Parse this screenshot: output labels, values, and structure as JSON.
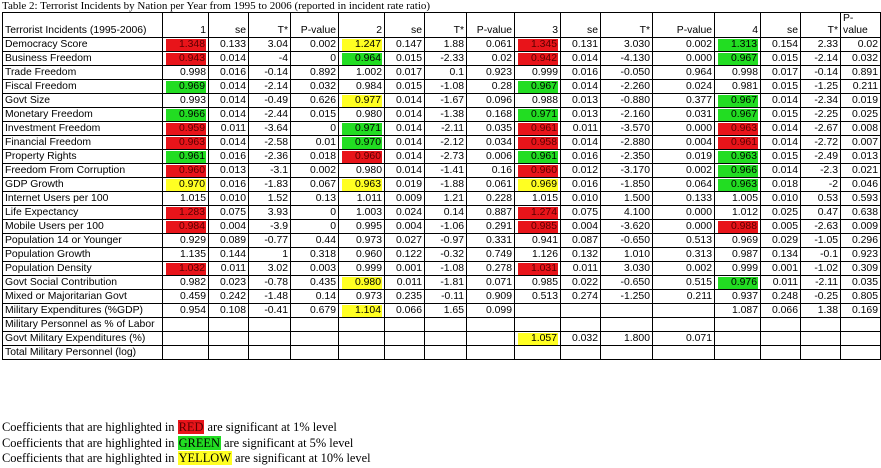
{
  "caption": "Table 2: Terrorist Incidents by Nation per Year from 1995 to 2006 (reported in incident rate ratio)",
  "header": [
    "Terrorist Incidents (1995-2006)",
    "1",
    "se",
    "T*",
    "P-value",
    "2",
    "se",
    "T*",
    "P-value",
    "3",
    "se",
    "T*",
    "P-value",
    "4",
    "se",
    "T*",
    "P-value"
  ],
  "rows": [
    {
      "label": "Democracy Score",
      "cells": [
        "1.348",
        "0.133",
        "3.04",
        "0.002",
        "1.247",
        "0.147",
        "1.88",
        "0.061",
        "1.345",
        "0.131",
        "3.030",
        "0.002",
        "1.313",
        "0.154",
        "2.33",
        "0.02"
      ],
      "hl": {
        "0": "r",
        "4": "y",
        "8": "r",
        "12": "g"
      }
    },
    {
      "label": "Business Freedom",
      "cells": [
        "0.943",
        "0.014",
        "-4",
        "0",
        "0.964",
        "0.015",
        "-2.33",
        "0.02",
        "0.942",
        "0.014",
        "-4.130",
        "0.000",
        "0.967",
        "0.015",
        "-2.14",
        "0.032"
      ],
      "hl": {
        "0": "r",
        "4": "g",
        "8": "r",
        "12": "g"
      }
    },
    {
      "label": "Trade Freedom",
      "cells": [
        "0.998",
        "0.016",
        "-0.14",
        "0.892",
        "1.002",
        "0.017",
        "0.1",
        "0.923",
        "0.999",
        "0.016",
        "-0.050",
        "0.964",
        "0.998",
        "0.017",
        "-0.14",
        "0.891"
      ],
      "hl": {}
    },
    {
      "label": "Fiscal Freedom",
      "cells": [
        "0.969",
        "0.014",
        "-2.14",
        "0.032",
        "0.984",
        "0.015",
        "-1.08",
        "0.28",
        "0.967",
        "0.014",
        "-2.260",
        "0.024",
        "0.981",
        "0.015",
        "-1.25",
        "0.211"
      ],
      "hl": {
        "0": "g",
        "8": "g"
      }
    },
    {
      "label": "Govt Size",
      "cells": [
        "0.993",
        "0.014",
        "-0.49",
        "0.626",
        "0.977",
        "0.014",
        "-1.67",
        "0.096",
        "0.988",
        "0.013",
        "-0.880",
        "0.377",
        "0.967",
        "0.014",
        "-2.34",
        "0.019"
      ],
      "hl": {
        "4": "y",
        "12": "g"
      }
    },
    {
      "label": "Monetary Freedom",
      "cells": [
        "0.966",
        "0.014",
        "-2.44",
        "0.015",
        "0.980",
        "0.014",
        "-1.38",
        "0.168",
        "0.971",
        "0.013",
        "-2.160",
        "0.031",
        "0.967",
        "0.015",
        "-2.25",
        "0.025"
      ],
      "hl": {
        "0": "g",
        "8": "g",
        "12": "g"
      }
    },
    {
      "label": "Investment Freedom",
      "cells": [
        "0.959",
        "0.011",
        "-3.64",
        "0",
        "0.971",
        "0.014",
        "-2.11",
        "0.035",
        "0.961",
        "0.011",
        "-3.570",
        "0.000",
        "0.963",
        "0.014",
        "-2.67",
        "0.008"
      ],
      "hl": {
        "0": "r",
        "4": "g",
        "8": "r",
        "12": "r"
      }
    },
    {
      "label": "Financial Freedom",
      "cells": [
        "0.963",
        "0.014",
        "-2.58",
        "0.01",
        "0.970",
        "0.014",
        "-2.12",
        "0.034",
        "0.958",
        "0.014",
        "-2.880",
        "0.004",
        "0.961",
        "0.014",
        "-2.72",
        "0.007"
      ],
      "hl": {
        "0": "r",
        "4": "g",
        "8": "r",
        "12": "r"
      }
    },
    {
      "label": "Property Rights",
      "cells": [
        "0.961",
        "0.016",
        "-2.36",
        "0.018",
        "0.960",
        "0.014",
        "-2.73",
        "0.006",
        "0.961",
        "0.016",
        "-2.350",
        "0.019",
        "0.963",
        "0.015",
        "-2.49",
        "0.013"
      ],
      "hl": {
        "0": "g",
        "4": "r",
        "8": "g",
        "12": "g"
      }
    },
    {
      "label": "Freedom From Corruption",
      "cells": [
        "0.960",
        "0.013",
        "-3.1",
        "0.002",
        "0.980",
        "0.014",
        "-1.41",
        "0.16",
        "0.960",
        "0.012",
        "-3.170",
        "0.002",
        "0.966",
        "0.014",
        "-2.3",
        "0.021"
      ],
      "hl": {
        "0": "r",
        "8": "r",
        "12": "g"
      }
    },
    {
      "label": "GDP Growth",
      "cells": [
        "0.970",
        "0.016",
        "-1.83",
        "0.067",
        "0.963",
        "0.019",
        "-1.88",
        "0.061",
        "0.969",
        "0.016",
        "-1.850",
        "0.064",
        "0.963",
        "0.018",
        "-2",
        "0.046"
      ],
      "hl": {
        "0": "y",
        "4": "y",
        "8": "y",
        "12": "g"
      }
    },
    {
      "label": "Internet Users per 100",
      "cells": [
        "1.015",
        "0.010",
        "1.52",
        "0.13",
        "1.011",
        "0.009",
        "1.21",
        "0.228",
        "1.015",
        "0.010",
        "1.500",
        "0.133",
        "1.005",
        "0.010",
        "0.53",
        "0.593"
      ],
      "hl": {}
    },
    {
      "label": "Life Expectancy",
      "cells": [
        "1.283",
        "0.075",
        "3.93",
        "0",
        "1.003",
        "0.024",
        "0.14",
        "0.887",
        "1.274",
        "0.075",
        "4.100",
        "0.000",
        "1.012",
        "0.025",
        "0.47",
        "0.638"
      ],
      "hl": {
        "0": "r",
        "8": "r"
      }
    },
    {
      "label": "Mobile Users per 100",
      "cells": [
        "0.984",
        "0.004",
        "-3.9",
        "0",
        "0.995",
        "0.004",
        "-1.06",
        "0.291",
        "0.985",
        "0.004",
        "-3.620",
        "0.000",
        "0.988",
        "0.005",
        "-2.63",
        "0.009"
      ],
      "hl": {
        "0": "r",
        "8": "r",
        "12": "r"
      }
    },
    {
      "label": "Population 14 or Younger",
      "cells": [
        "0.929",
        "0.089",
        "-0.77",
        "0.44",
        "0.973",
        "0.027",
        "-0.97",
        "0.331",
        "0.941",
        "0.087",
        "-0.650",
        "0.513",
        "0.969",
        "0.029",
        "-1.05",
        "0.296"
      ],
      "hl": {}
    },
    {
      "label": "Population Growth",
      "cells": [
        "1.135",
        "0.144",
        "1",
        "0.318",
        "0.960",
        "0.122",
        "-0.32",
        "0.749",
        "1.126",
        "0.132",
        "1.010",
        "0.313",
        "0.987",
        "0.134",
        "-0.1",
        "0.923"
      ],
      "hl": {}
    },
    {
      "label": "Population Density",
      "cells": [
        "1.032",
        "0.011",
        "3.02",
        "0.003",
        "0.999",
        "0.001",
        "-1.08",
        "0.278",
        "1.031",
        "0.011",
        "3.030",
        "0.002",
        "0.999",
        "0.001",
        "-1.02",
        "0.309"
      ],
      "hl": {
        "0": "r",
        "8": "r"
      }
    },
    {
      "label": "Govt Social Contribution",
      "cells": [
        "0.982",
        "0.023",
        "-0.78",
        "0.435",
        "0.980",
        "0.011",
        "-1.81",
        "0.071",
        "0.985",
        "0.022",
        "-0.650",
        "0.515",
        "0.976",
        "0.011",
        "-2.11",
        "0.035"
      ],
      "hl": {
        "4": "y",
        "12": "g"
      }
    },
    {
      "label": "Mixed or Majoritarian Govt",
      "cells": [
        "0.459",
        "0.242",
        "-1.48",
        "0.14",
        "0.973",
        "0.235",
        "-0.11",
        "0.909",
        "0.513",
        "0.274",
        "-1.250",
        "0.211",
        "0.937",
        "0.248",
        "-0.25",
        "0.805"
      ],
      "hl": {}
    },
    {
      "label": "Military Expenditures (%GDP)",
      "cells": [
        "0.954",
        "0.108",
        "-0.41",
        "0.679",
        "1.104",
        "0.066",
        "1.65",
        "0.099",
        "",
        "",
        "",
        "",
        "1.087",
        "0.066",
        "1.38",
        "0.169"
      ],
      "hl": {
        "4": "y"
      }
    },
    {
      "label": "Military Personnel as % of Labor",
      "cells": [
        "",
        "",
        "",
        "",
        "",
        "",
        "",
        "",
        "",
        "",
        "",
        "",
        "",
        "",
        "",
        ""
      ],
      "hl": {}
    },
    {
      "label": "Govt Military Expenditures (%)",
      "cells": [
        "",
        "",
        "",
        "",
        "",
        "",
        "",
        "",
        "1.057",
        "0.032",
        "1.800",
        "0.071",
        "",
        "",
        "",
        ""
      ],
      "hl": {
        "8": "y"
      }
    },
    {
      "label": "Total Military Personnel (log)",
      "cells": [
        "",
        "",
        "",
        "",
        "",
        "",
        "",
        "",
        "",
        "",
        "",
        "",
        "",
        "",
        "",
        ""
      ],
      "hl": {}
    }
  ],
  "notes": [
    {
      "pre": "Coefficients that are highlighted in ",
      "swatch": "RED",
      "post": " are significant at 1% level",
      "color": "r"
    },
    {
      "pre": "Coefficients that are highlighted in ",
      "swatch": "GREEN",
      "post": " are significant at 5% level",
      "color": "g"
    },
    {
      "pre": "Coefficients that are highlighted in ",
      "swatch": "YELLOW",
      "post": " are significant at 10% level",
      "color": "y"
    }
  ],
  "colors": {
    "red": "#e8141a",
    "green": "#22dd22",
    "yellow": "#ffff22"
  }
}
